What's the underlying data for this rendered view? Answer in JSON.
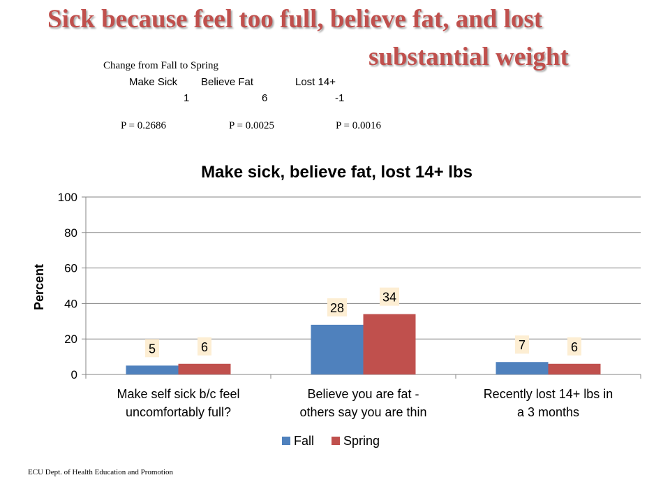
{
  "slide": {
    "title_line1": "Sick because feel too full, believe fat, and lost",
    "title_line2": "substantial weight",
    "change_title": "Change  from Fall to Spring",
    "change_headers": [
      "Make Sick",
      "Believe Fat",
      "Lost 14+"
    ],
    "change_values": [
      "1",
      "6",
      "-1"
    ],
    "p_values": [
      "P = 0.2686",
      "P = 0.0025",
      "P = 0.0016"
    ],
    "footer": "ECU Dept. of Health Education and Promotion"
  },
  "colors": {
    "title": "#c0504d",
    "fall": "#4f81bd",
    "spring": "#c0504d",
    "label_bg": "#fdeed3"
  },
  "chart_data": {
    "type": "bar",
    "title": "Make sick, believe fat, lost 14+ lbs",
    "ylabel": "Percent",
    "xlabel": "",
    "ylim": [
      0,
      100
    ],
    "yticks": [
      "0",
      "20",
      "40",
      "60",
      "80",
      "100"
    ],
    "ytick_values": [
      0,
      20,
      40,
      60,
      80,
      100
    ],
    "grid": true,
    "legend_position": "bottom",
    "categories": [
      [
        "Make self sick b/c feel",
        "uncomfortably full?"
      ],
      [
        "Believe you are fat -",
        "others say you are thin"
      ],
      [
        "Recently lost 14+ lbs in",
        "a 3 months"
      ]
    ],
    "series": [
      {
        "name": "Fall",
        "values": [
          5,
          28,
          7
        ],
        "labels": [
          "5",
          "28",
          "7"
        ]
      },
      {
        "name": "Spring",
        "values": [
          6,
          34,
          6
        ],
        "labels": [
          "6",
          "34",
          "6"
        ]
      }
    ]
  }
}
